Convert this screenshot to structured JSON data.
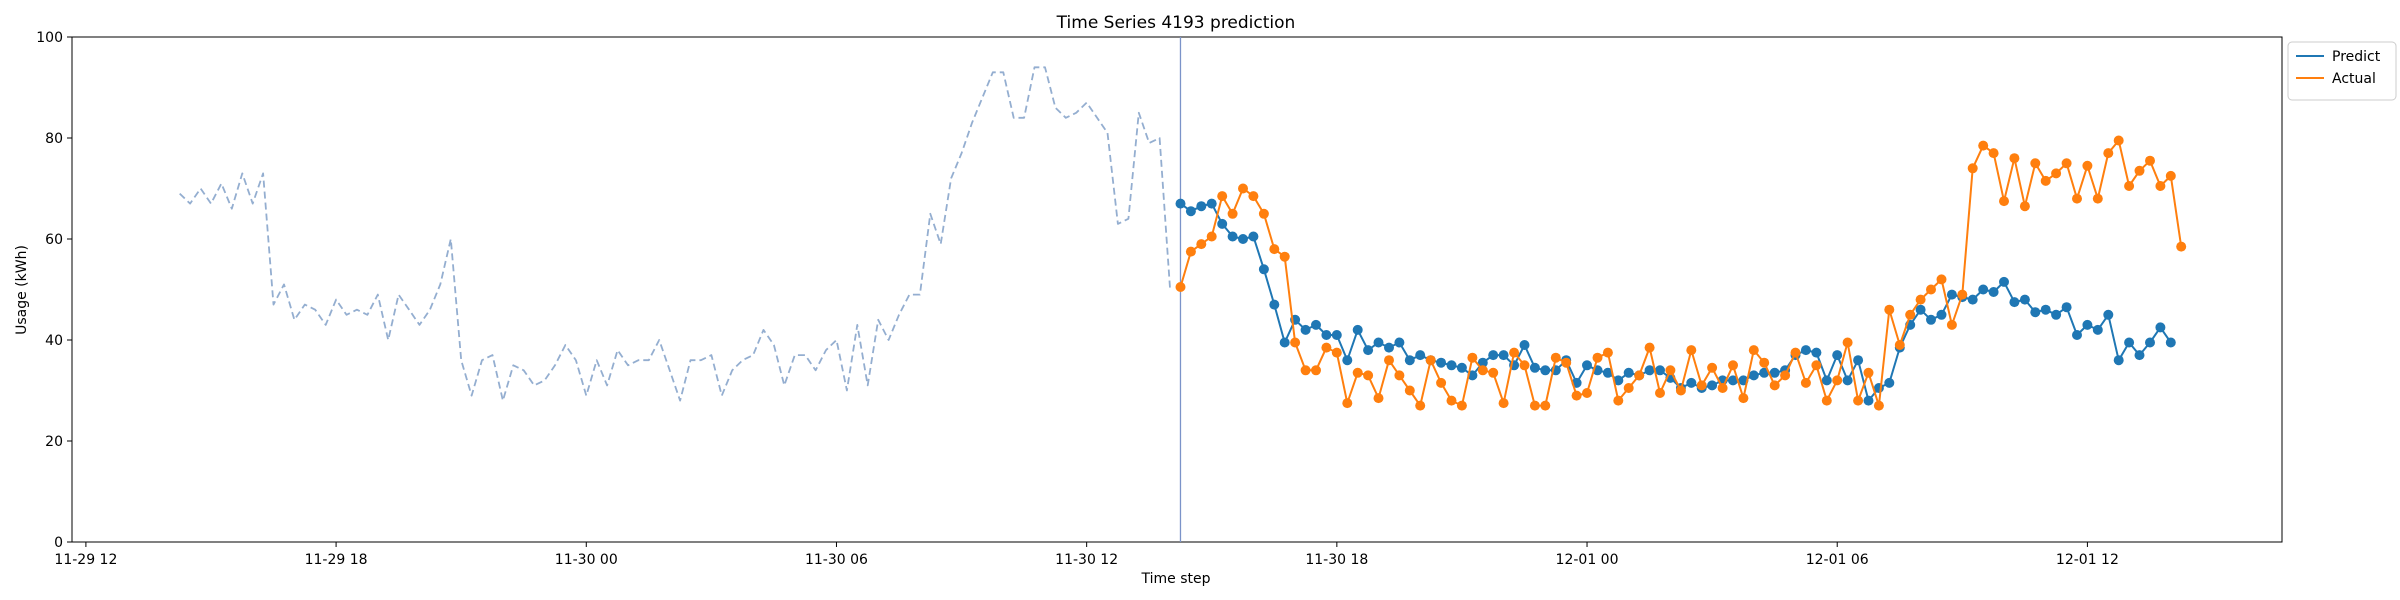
{
  "chart_data": {
    "type": "line",
    "title": "Time Series 4193 prediction",
    "xlabel": "Time step",
    "ylabel": "Usage (kWh)",
    "ylim": [
      0,
      100
    ],
    "xlim": [
      "2023-11-29 11:40",
      "2023-12-01 16:40"
    ],
    "x_tick_labels": [
      {
        "t": "2023-11-29 12:00",
        "label": "11-29 12"
      },
      {
        "t": "2023-11-29 18:00",
        "label": "11-29 18"
      },
      {
        "t": "2023-11-30 00:00",
        "label": "11-30 00"
      },
      {
        "t": "2023-11-30 06:00",
        "label": "11-30 06"
      },
      {
        "t": "2023-11-30 12:00",
        "label": "11-30 12"
      },
      {
        "t": "2023-11-30 18:00",
        "label": "11-30 18"
      },
      {
        "t": "2023-12-01 00:00",
        "label": "12-01 00"
      },
      {
        "t": "2023-12-01 06:00",
        "label": "12-01 06"
      },
      {
        "t": "2023-12-01 12:00",
        "label": "12-01 12"
      }
    ],
    "y_ticks": [
      0,
      20,
      40,
      60,
      80,
      100
    ],
    "step_minutes": 15,
    "vline_x": "2023-11-30 14:15",
    "legend_position": "outside-top-right",
    "series": [
      {
        "name": "",
        "style": "dashed",
        "color": "#94aed0",
        "start": "2023-11-29 14:15",
        "values": [
          69,
          67,
          70,
          67,
          71,
          66,
          73,
          67,
          73,
          47,
          51,
          44,
          47,
          46,
          43,
          48,
          45,
          46,
          45,
          49,
          40,
          49,
          46,
          43,
          46,
          51,
          60,
          36,
          29,
          36,
          37,
          28,
          35,
          34,
          31,
          32,
          35,
          39,
          36,
          29,
          36,
          31,
          38,
          35,
          36,
          36,
          40,
          34,
          28,
          36,
          36,
          37,
          29,
          34,
          36,
          37,
          42,
          39,
          31,
          37,
          37,
          34,
          38,
          40,
          30,
          43,
          31,
          44,
          40,
          45,
          49,
          49,
          65,
          59,
          72,
          77,
          83,
          88,
          93,
          93,
          84,
          84,
          94,
          94,
          86,
          84,
          85,
          87,
          84,
          81,
          63,
          64,
          85,
          79,
          80,
          50
        ]
      },
      {
        "name": "Predict",
        "style": "solid-markers",
        "color": "#1f77b4",
        "start": "2023-11-30 14:15",
        "values": [
          67,
          65.5,
          66.5,
          67,
          63,
          60.5,
          60,
          60.5,
          54,
          47,
          39.5,
          44,
          42,
          43,
          41,
          41,
          36,
          42,
          38,
          39.5,
          38.5,
          39.5,
          36,
          37,
          36,
          35.5,
          35,
          34.5,
          33,
          35.5,
          37,
          37,
          35,
          39,
          34.5,
          34,
          34,
          36,
          31.5,
          35,
          34,
          33.5,
          32,
          33.5,
          33,
          34,
          34,
          32.5,
          30.5,
          31.5,
          30.5,
          31,
          32,
          32,
          32,
          33,
          33.5,
          33.5,
          34,
          37,
          38,
          37.5,
          32,
          37,
          32,
          36,
          28,
          30.5,
          31.5,
          38.5,
          43,
          46,
          44,
          45,
          49,
          48.5,
          48,
          50,
          49.5,
          51.5,
          47.5,
          48,
          45.5,
          46,
          45,
          46.5,
          41,
          43,
          42,
          45,
          36,
          39.5,
          37,
          39.5,
          42.5,
          39.5
        ]
      },
      {
        "name": "Actual",
        "style": "solid-markers",
        "color": "#ff7f0e",
        "start": "2023-11-30 14:15",
        "values": [
          50.5,
          57.5,
          59,
          60.5,
          68.5,
          65,
          70,
          68.5,
          65,
          58,
          56.5,
          39.5,
          34,
          34,
          38.5,
          37.5,
          27.5,
          33.5,
          33,
          28.5,
          36,
          33,
          30,
          27,
          36,
          31.5,
          28,
          27,
          36.5,
          34,
          33.5,
          27.5,
          37.5,
          35,
          27,
          27,
          36.5,
          35.5,
          29,
          29.5,
          36.5,
          37.5,
          28,
          30.5,
          33,
          38.5,
          29.5,
          34,
          30,
          38,
          31,
          34.5,
          30.5,
          35,
          28.5,
          38,
          35.5,
          31,
          33,
          37.5,
          31.5,
          35,
          28,
          32,
          39.5,
          28,
          33.5,
          27,
          46,
          39,
          45,
          48,
          50,
          52,
          43,
          49,
          74,
          78.5,
          77,
          67.5,
          76,
          66.5,
          75,
          71.5,
          73,
          75,
          68,
          74.5,
          68,
          77,
          79.5,
          70.5,
          73.5,
          75.5,
          70.5,
          72.5,
          58.5
        ]
      }
    ]
  }
}
